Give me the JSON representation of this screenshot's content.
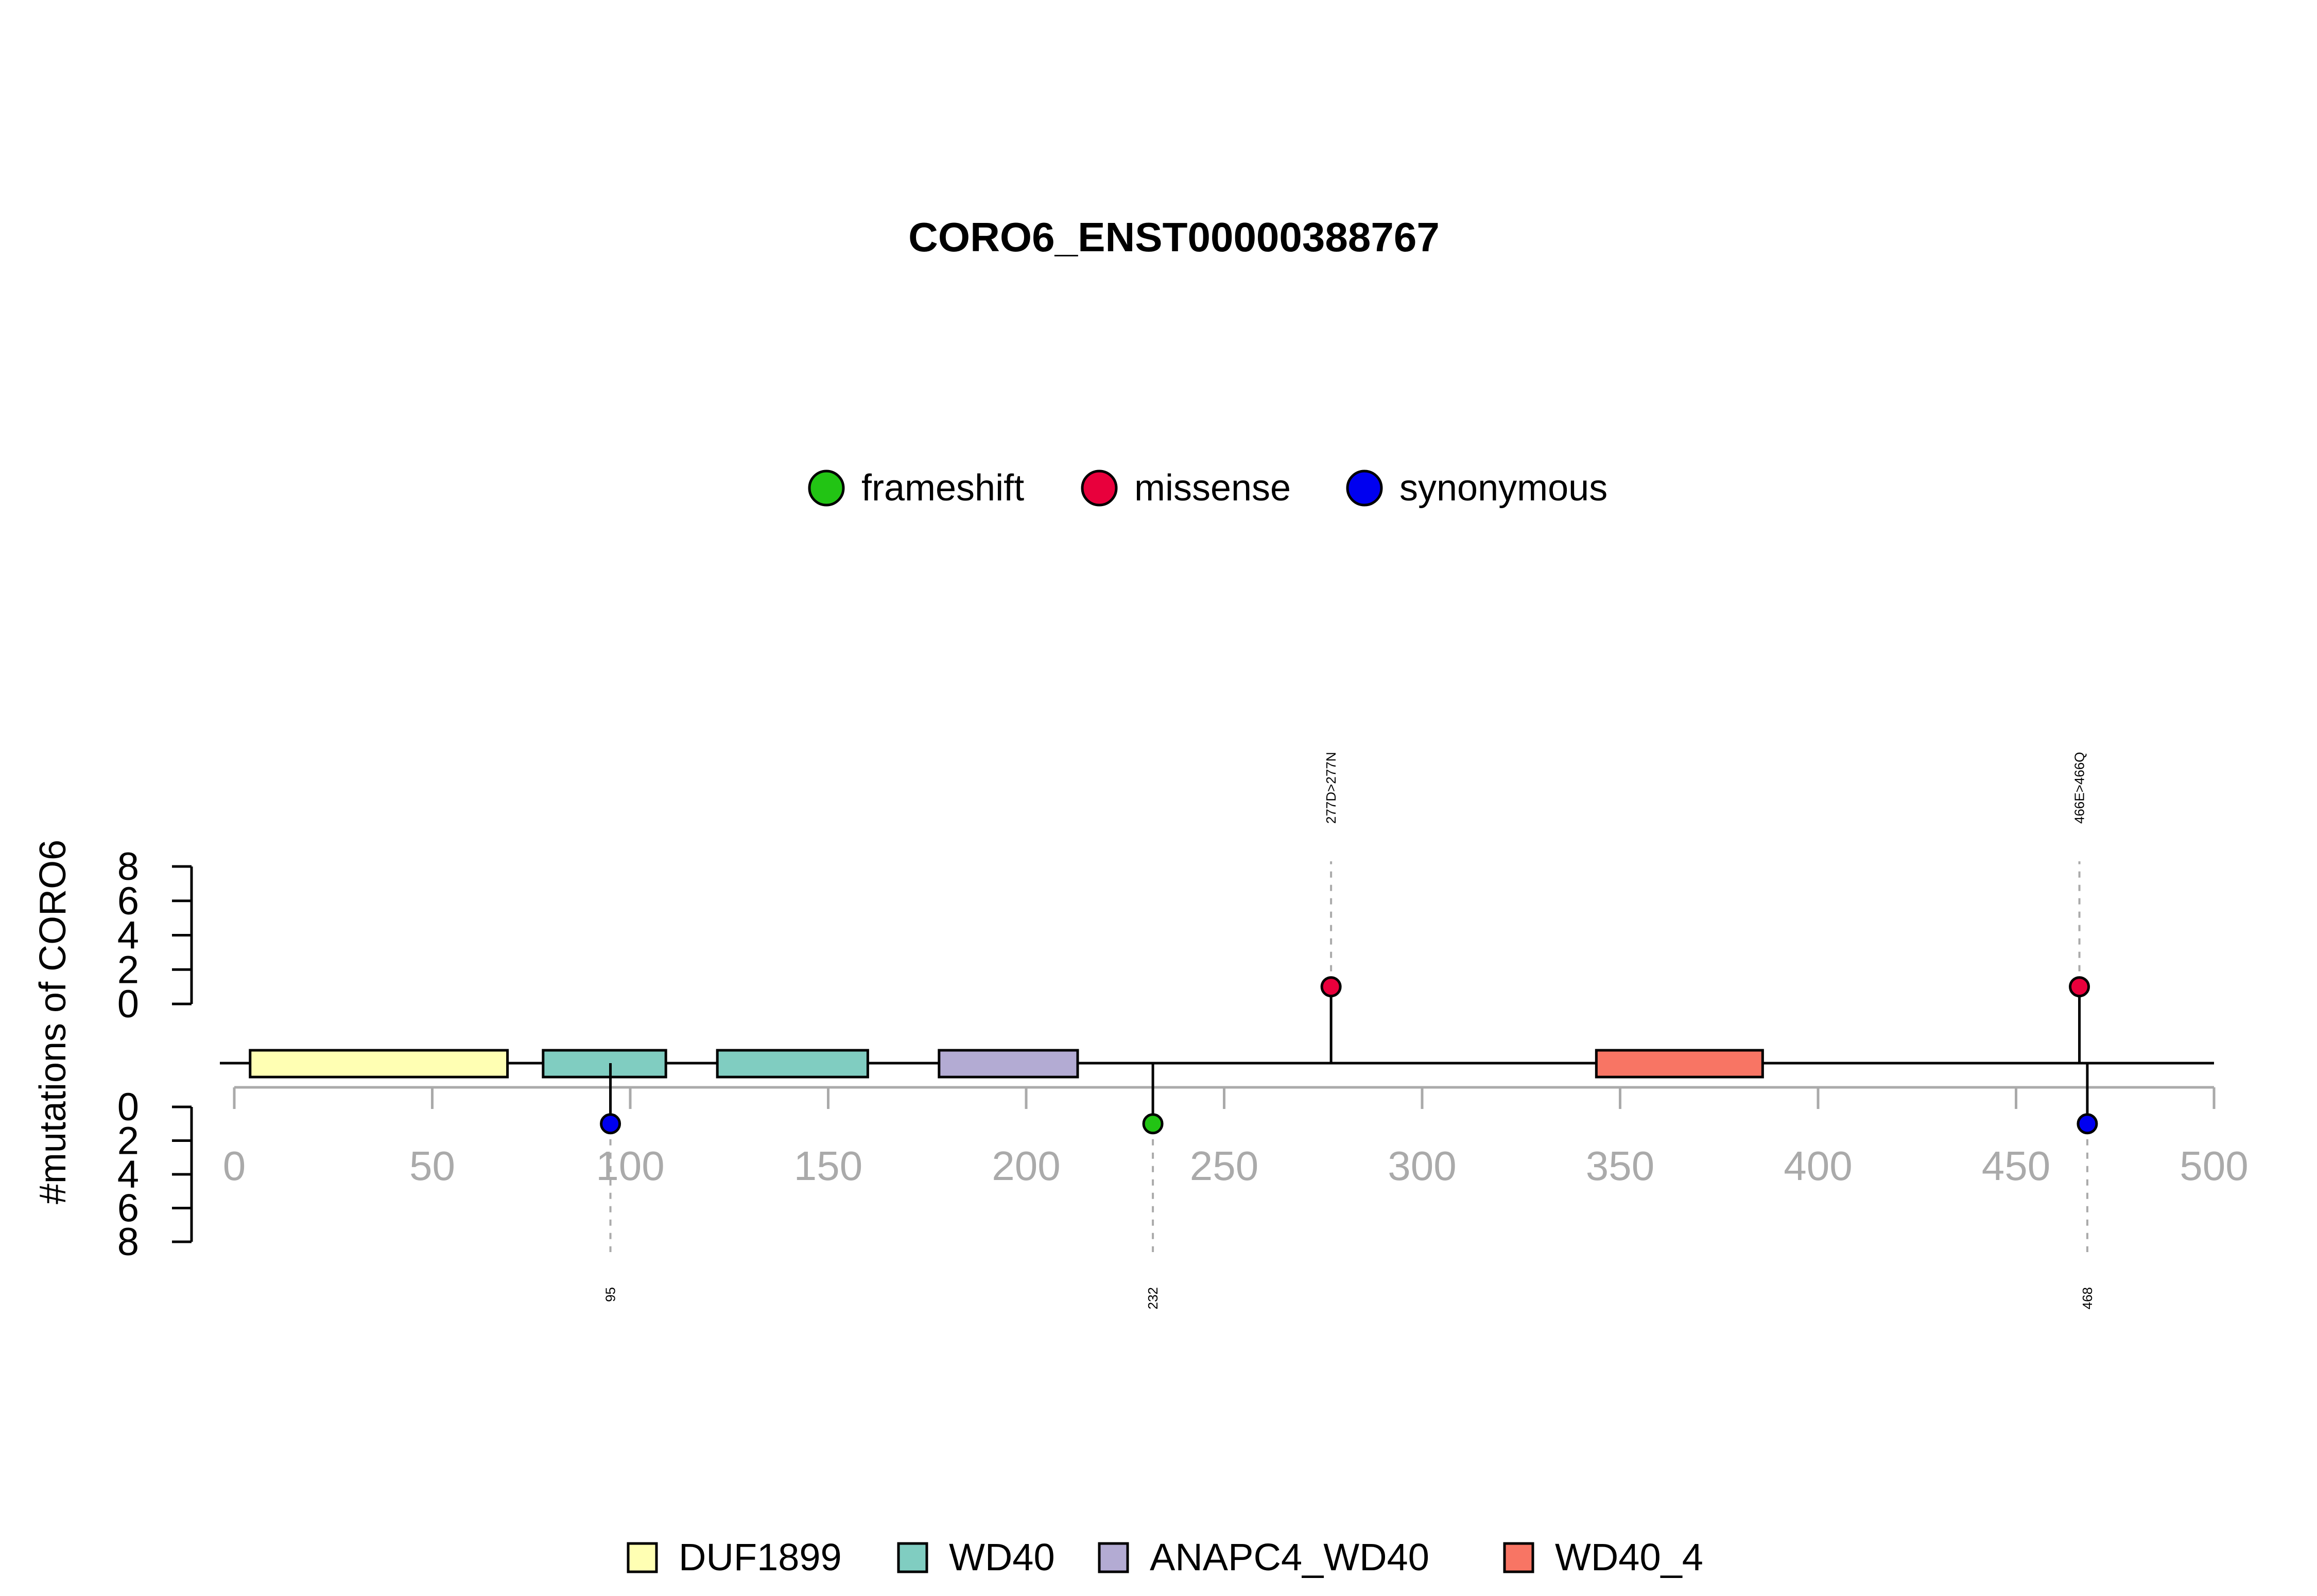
{
  "chart_data": {
    "type": "lollipop",
    "title": "CORO6_ENST00000388767",
    "ylabel": "#mutations of CORO6",
    "xlim": [
      0,
      500
    ],
    "x_ticks": [
      0,
      50,
      100,
      150,
      200,
      250,
      300,
      350,
      400,
      450,
      500
    ],
    "y_ticks_upper": [
      0,
      2,
      4,
      6,
      8
    ],
    "y_ticks_lower": [
      0,
      2,
      4,
      6,
      8
    ],
    "ylim": [
      0,
      8
    ],
    "grid": false,
    "mutation_legend": [
      {
        "label": "frameshift",
        "color": "#22c414"
      },
      {
        "label": "missense",
        "color": "#e8003c"
      },
      {
        "label": "synonymous",
        "color": "#0000f0"
      }
    ],
    "domain_legend": [
      {
        "label": "DUF1899",
        "color": "#ffffb3"
      },
      {
        "label": "WD40",
        "color": "#80cdc1"
      },
      {
        "label": "ANAPC4_WD40",
        "color": "#b3abd3"
      },
      {
        "label": "WD40_4",
        "color": "#f87564"
      }
    ],
    "domains": [
      {
        "name": "DUF1899",
        "start": 4,
        "end": 69
      },
      {
        "name": "WD40",
        "start": 78,
        "end": 109
      },
      {
        "name": "WD40",
        "start": 122,
        "end": 160
      },
      {
        "name": "ANAPC4_WD40",
        "start": 178,
        "end": 213
      },
      {
        "name": "WD40_4",
        "start": 344,
        "end": 386
      }
    ],
    "mutations_upper": [
      {
        "position": 277,
        "label": "277D>277N",
        "type": "missense",
        "count": 1
      },
      {
        "position": 466,
        "label": "466E>466Q",
        "type": "missense",
        "count": 1
      }
    ],
    "mutations_lower": [
      {
        "position": 95,
        "label": "95",
        "type": "synonymous",
        "count": 1
      },
      {
        "position": 232,
        "label": "232",
        "type": "frameshift",
        "count": 1
      },
      {
        "position": 468,
        "label": "468",
        "type": "synonymous",
        "count": 1
      }
    ]
  }
}
